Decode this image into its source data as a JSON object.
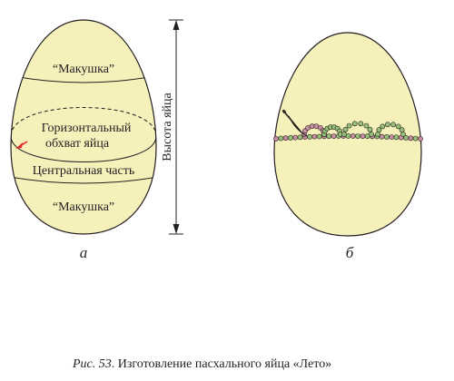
{
  "figure_a": {
    "label_top": "“Макушка”",
    "label_horizontal_line1": "Горизонтальный",
    "label_horizontal_line2": "обхват яйца",
    "label_center": "Центральная часть",
    "label_bottom": "“Макушка”",
    "label_height": "Высота яйца",
    "panel_letter": "а"
  },
  "figure_b": {
    "panel_letter": "б"
  },
  "caption": {
    "prefix": "Рис. 53",
    "text": ". Изготовление пасхального яйца «Лето»"
  },
  "colors": {
    "egg_fill": "#f6f0bb",
    "outline": "#231f20",
    "needle": "#e3262a",
    "bead_pink": "#c98fa3",
    "bead_green": "#97c178"
  }
}
